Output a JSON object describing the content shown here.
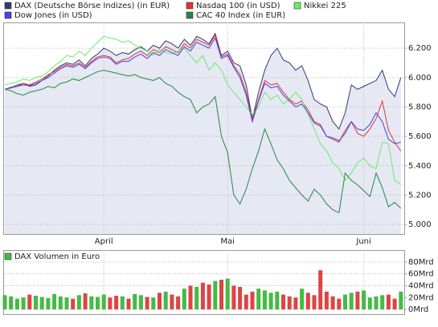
{
  "chart_data": [
    {
      "type": "line",
      "categories": [
        null,
        null,
        null,
        null,
        null,
        null,
        null,
        null,
        null,
        null,
        null,
        null,
        null,
        null,
        null,
        null,
        "April",
        null,
        null,
        null,
        null,
        null,
        null,
        null,
        null,
        null,
        null,
        null,
        null,
        null,
        null,
        null,
        null,
        null,
        null,
        null,
        "Mai",
        null,
        null,
        null,
        null,
        null,
        null,
        null,
        null,
        null,
        null,
        null,
        null,
        null,
        null,
        null,
        null,
        null,
        null,
        null,
        null,
        null,
        "Juni",
        null,
        null,
        null,
        null,
        null,
        null
      ],
      "ylim": [
        4935,
        6375
      ],
      "yticks": [
        {
          "value": 5000,
          "label": "5.000"
        },
        {
          "value": 5200,
          "label": "5.200"
        },
        {
          "value": 5400,
          "label": "5.400"
        },
        {
          "value": 5600,
          "label": "5.600"
        },
        {
          "value": 5800,
          "label": "5.800"
        },
        {
          "value": 6000,
          "label": "6.000"
        },
        {
          "value": 6200,
          "label": "6.200"
        }
      ],
      "grid": true,
      "fill_first_series": "#e6e8f4",
      "series": [
        {
          "name": "DAX (Deutsche Börse Indizes) (in EUR)",
          "color": "#343a6c",
          "values": [
            5920,
            5930,
            5950,
            5960,
            5940,
            5950,
            5980,
            6010,
            6050,
            6080,
            6100,
            6090,
            6120,
            6080,
            6130,
            6160,
            6200,
            6180,
            6150,
            6170,
            6160,
            6190,
            6210,
            6180,
            6220,
            6200,
            6250,
            6230,
            6200,
            6260,
            6220,
            6280,
            6260,
            6230,
            6300,
            6150,
            6180,
            6100,
            6080,
            5950,
            5720,
            5900,
            6050,
            6150,
            6200,
            6120,
            6100,
            6050,
            6080,
            5980,
            5850,
            5820,
            5800,
            5700,
            5650,
            5760,
            5950,
            5920,
            5940,
            5960,
            5980,
            6050,
            5920,
            5870,
            6000
          ]
        },
        {
          "name": "Nasdaq 100 (in USD)",
          "color": "#e03535",
          "values": [
            5920,
            5935,
            5940,
            5960,
            5950,
            5970,
            5990,
            6020,
            6040,
            6070,
            6090,
            6080,
            6100,
            6070,
            6110,
            6140,
            6150,
            6140,
            6100,
            6120,
            6130,
            6160,
            6180,
            6150,
            6190,
            6170,
            6210,
            6190,
            6170,
            6230,
            6200,
            6260,
            6240,
            6220,
            6290,
            6140,
            6160,
            6080,
            6020,
            5900,
            5720,
            5850,
            5980,
            5950,
            5960,
            5900,
            5850,
            5820,
            5840,
            5780,
            5700,
            5680,
            5600,
            5580,
            5560,
            5640,
            5700,
            5620,
            5600,
            5650,
            5720,
            5840,
            5640,
            5560,
            5500
          ]
        },
        {
          "name": "Nikkei 225",
          "color": "#66ee66",
          "values": [
            5950,
            5960,
            5970,
            5990,
            5980,
            6000,
            6010,
            6040,
            6080,
            6110,
            6150,
            6140,
            6180,
            6150,
            6200,
            6240,
            6280,
            6270,
            6260,
            6240,
            6250,
            6220,
            6200,
            6180,
            6150,
            6190,
            6170,
            6160,
            6180,
            6200,
            6150,
            6100,
            6150,
            6050,
            6100,
            6050,
            5950,
            5900,
            5850,
            5800,
            5750,
            5800,
            5900,
            5850,
            5880,
            5820,
            5850,
            5900,
            5850,
            5750,
            5650,
            5550,
            5500,
            5420,
            5380,
            5300,
            5350,
            5420,
            5450,
            5400,
            5380,
            5560,
            5550,
            5300,
            5270
          ]
        },
        {
          "name": "Dow Jones (in USD)",
          "color": "#4444dd",
          "values": [
            5920,
            5930,
            5940,
            5950,
            5945,
            5960,
            5980,
            6000,
            6030,
            6060,
            6080,
            6070,
            6090,
            6060,
            6100,
            6130,
            6140,
            6130,
            6090,
            6110,
            6110,
            6140,
            6160,
            6130,
            6170,
            6150,
            6190,
            6170,
            6150,
            6210,
            6180,
            6240,
            6220,
            6200,
            6270,
            6130,
            6150,
            6070,
            6000,
            5880,
            5700,
            5840,
            5960,
            5930,
            5940,
            5880,
            5840,
            5800,
            5820,
            5760,
            5690,
            5670,
            5600,
            5590,
            5570,
            5620,
            5700,
            5650,
            5640,
            5680,
            5760,
            5700,
            5580,
            5550,
            5560
          ]
        },
        {
          "name": "CAC 40 Index (in EUR)",
          "color": "#228844",
          "values": [
            5920,
            5910,
            5890,
            5880,
            5900,
            5910,
            5920,
            5940,
            5930,
            5960,
            5970,
            5990,
            5980,
            6000,
            6020,
            6040,
            6050,
            6040,
            6030,
            6020,
            6010,
            6020,
            6000,
            5990,
            5980,
            6000,
            5960,
            5940,
            5900,
            5870,
            5850,
            5760,
            5800,
            5820,
            5870,
            5600,
            5490,
            5200,
            5140,
            5240,
            5380,
            5500,
            5650,
            5550,
            5440,
            5380,
            5300,
            5250,
            5200,
            5160,
            5240,
            5200,
            5140,
            5100,
            5080,
            5350,
            5300,
            5270,
            5230,
            5190,
            5350,
            5250,
            5120,
            5150,
            5110
          ]
        }
      ]
    },
    {
      "type": "bar",
      "ylim": [
        -8,
        100
      ],
      "yticks": [
        {
          "value": 0,
          "label": "0Mrd"
        },
        {
          "value": 20,
          "label": "20Mrd"
        },
        {
          "value": 40,
          "label": "40Mrd"
        },
        {
          "value": 60,
          "label": "60Mrd"
        },
        {
          "value": 80,
          "label": "80Mrd"
        }
      ],
      "grid": true,
      "series": [
        {
          "name": "DAX Volumen in Euro",
          "color": "#44bb44",
          "values": [
            24,
            22,
            18,
            20,
            25,
            23,
            21,
            19,
            26,
            22,
            20,
            18,
            24,
            27,
            22,
            21,
            25,
            20,
            23,
            22,
            18,
            26,
            24,
            21,
            20,
            28,
            30,
            25,
            22,
            35,
            40,
            38,
            45,
            42,
            48,
            50,
            52,
            40,
            38,
            25,
            30,
            35,
            32,
            28,
            30,
            25,
            22,
            20,
            35,
            28,
            24,
            66,
            30,
            22,
            18,
            25,
            28,
            30,
            32,
            20,
            22,
            24,
            25,
            18,
            30
          ],
          "colors": [
            "#44bb44",
            "#44bb44",
            "#44bb44",
            "#44bb44",
            "#dd4444",
            "#44bb44",
            "#44bb44",
            "#44bb44",
            "#44bb44",
            "#44bb44",
            "#44bb44",
            "#dd4444",
            "#44bb44",
            "#dd4444",
            "#44bb44",
            "#44bb44",
            "#44bb44",
            "#dd4444",
            "#dd4444",
            "#44bb44",
            "#dd4444",
            "#44bb44",
            "#44bb44",
            "#dd4444",
            "#44bb44",
            "#dd4444",
            "#44bb44",
            "#dd4444",
            "#dd4444",
            "#44bb44",
            "#dd4444",
            "#44bb44",
            "#dd4444",
            "#dd4444",
            "#44bb44",
            "#dd4444",
            "#44bb44",
            "#dd4444",
            "#dd4444",
            "#dd4444",
            "#dd4444",
            "#44bb44",
            "#44bb44",
            "#44bb44",
            "#44bb44",
            "#dd4444",
            "#dd4444",
            "#dd4444",
            "#44bb44",
            "#dd4444",
            "#dd4444",
            "#dd4444",
            "#dd4444",
            "#dd4444",
            "#dd4444",
            "#44bb44",
            "#44bb44",
            "#dd4444",
            "#44bb44",
            "#44bb44",
            "#44bb44",
            "#44bb44",
            "#dd4444",
            "#dd4444",
            "#44bb44"
          ]
        }
      ]
    }
  ]
}
